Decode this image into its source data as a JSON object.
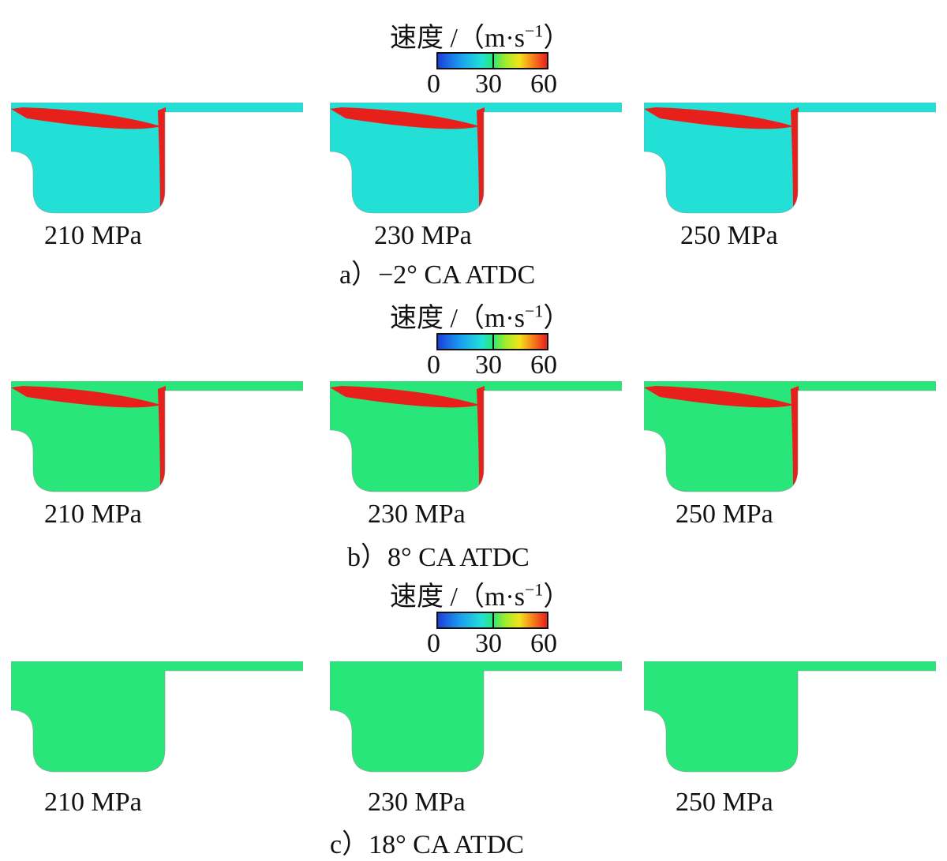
{
  "colorbar": {
    "title": "速度 /（m·s",
    "exp": "−1",
    "close": "）",
    "ticks": [
      "0",
      "30",
      "60"
    ],
    "colors": [
      "#1d3fd8",
      "#1a9cf0",
      "#22e0d6",
      "#29e67a",
      "#a2ec2a",
      "#f3e21c",
      "#f7791b",
      "#e8201c"
    ]
  },
  "rows": [
    {
      "caption": "a）−2° CA ATDC",
      "labels": [
        "210 MPa",
        "230 MPa",
        "250 MPa"
      ],
      "state": "early"
    },
    {
      "caption": "b）8° CA ATDC",
      "labels": [
        "210 MPa",
        "230 MPa",
        "250 MPa"
      ],
      "state": "mid"
    },
    {
      "caption": "c）18° CA ATDC",
      "labels": [
        "210 MPa",
        "230 MPa",
        "250 MPa"
      ],
      "state": "late"
    }
  ]
}
